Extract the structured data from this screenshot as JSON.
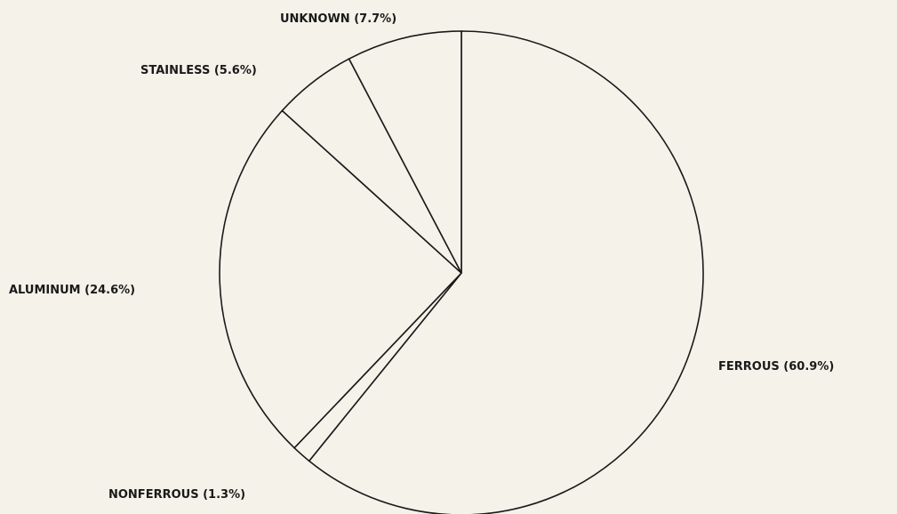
{
  "chart_data": {
    "type": "pie",
    "categories": [
      "FERROUS",
      "NONFERROUS",
      "ALUMINUM",
      "STAINLESS",
      "UNKNOWN"
    ],
    "values": [
      60.9,
      1.3,
      24.6,
      5.6,
      7.7
    ],
    "value_labels": [
      "(60.9%)",
      "(1.3%)",
      "(24.6%)",
      "(5.6%)",
      "(7.7%)"
    ],
    "color": "#f4f2e9"
  }
}
